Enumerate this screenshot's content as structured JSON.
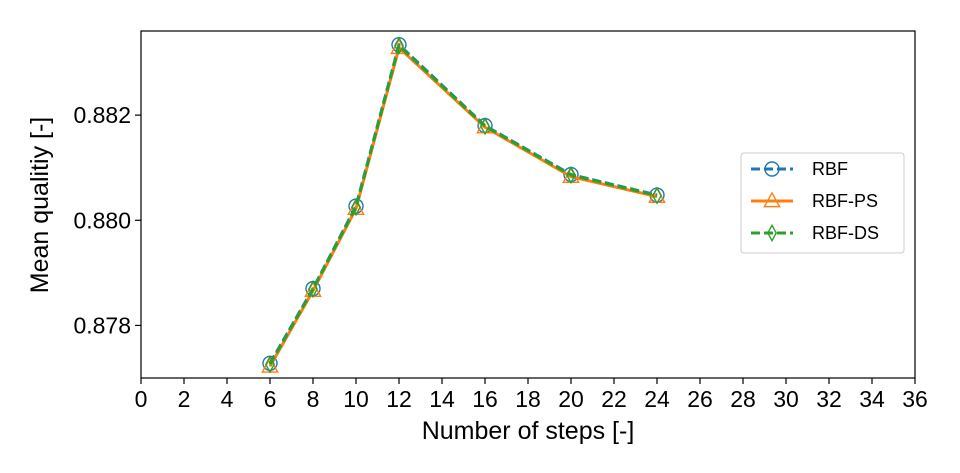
{
  "chart_data": {
    "type": "line",
    "xlabel": "Number of steps [-]",
    "ylabel": "Mean qualitiy [-]",
    "xlim": [
      0,
      36
    ],
    "ylim": [
      0.877,
      0.8836
    ],
    "xticks": [
      "0",
      "2",
      "4",
      "6",
      "8",
      "10",
      "12",
      "14",
      "16",
      "18",
      "20",
      "22",
      "24",
      "26",
      "28",
      "30",
      "32",
      "34",
      "36"
    ],
    "yticks": [
      "0.878",
      "0.880",
      "0.882"
    ],
    "grid": false,
    "legend_position": "right",
    "x": [
      6,
      8,
      10,
      12,
      16,
      20,
      24
    ],
    "series": [
      {
        "name": "RBF",
        "color": "#1f77b4",
        "marker": "circle",
        "line": "dashed",
        "values": [
          0.87728,
          0.8787,
          0.88027,
          0.88334,
          0.8818,
          0.88087,
          0.88048
        ]
      },
      {
        "name": "RBF-PS",
        "color": "#ff7f0e",
        "marker": "triangle",
        "line": "solid",
        "values": [
          0.87722,
          0.87866,
          0.88022,
          0.88328,
          0.88177,
          0.88083,
          0.88045
        ]
      },
      {
        "name": "RBF-DS",
        "color": "#2ca02c",
        "marker": "diamond",
        "line": "dashed",
        "values": [
          0.87726,
          0.87869,
          0.88025,
          0.88332,
          0.88179,
          0.88086,
          0.88047
        ]
      }
    ]
  }
}
